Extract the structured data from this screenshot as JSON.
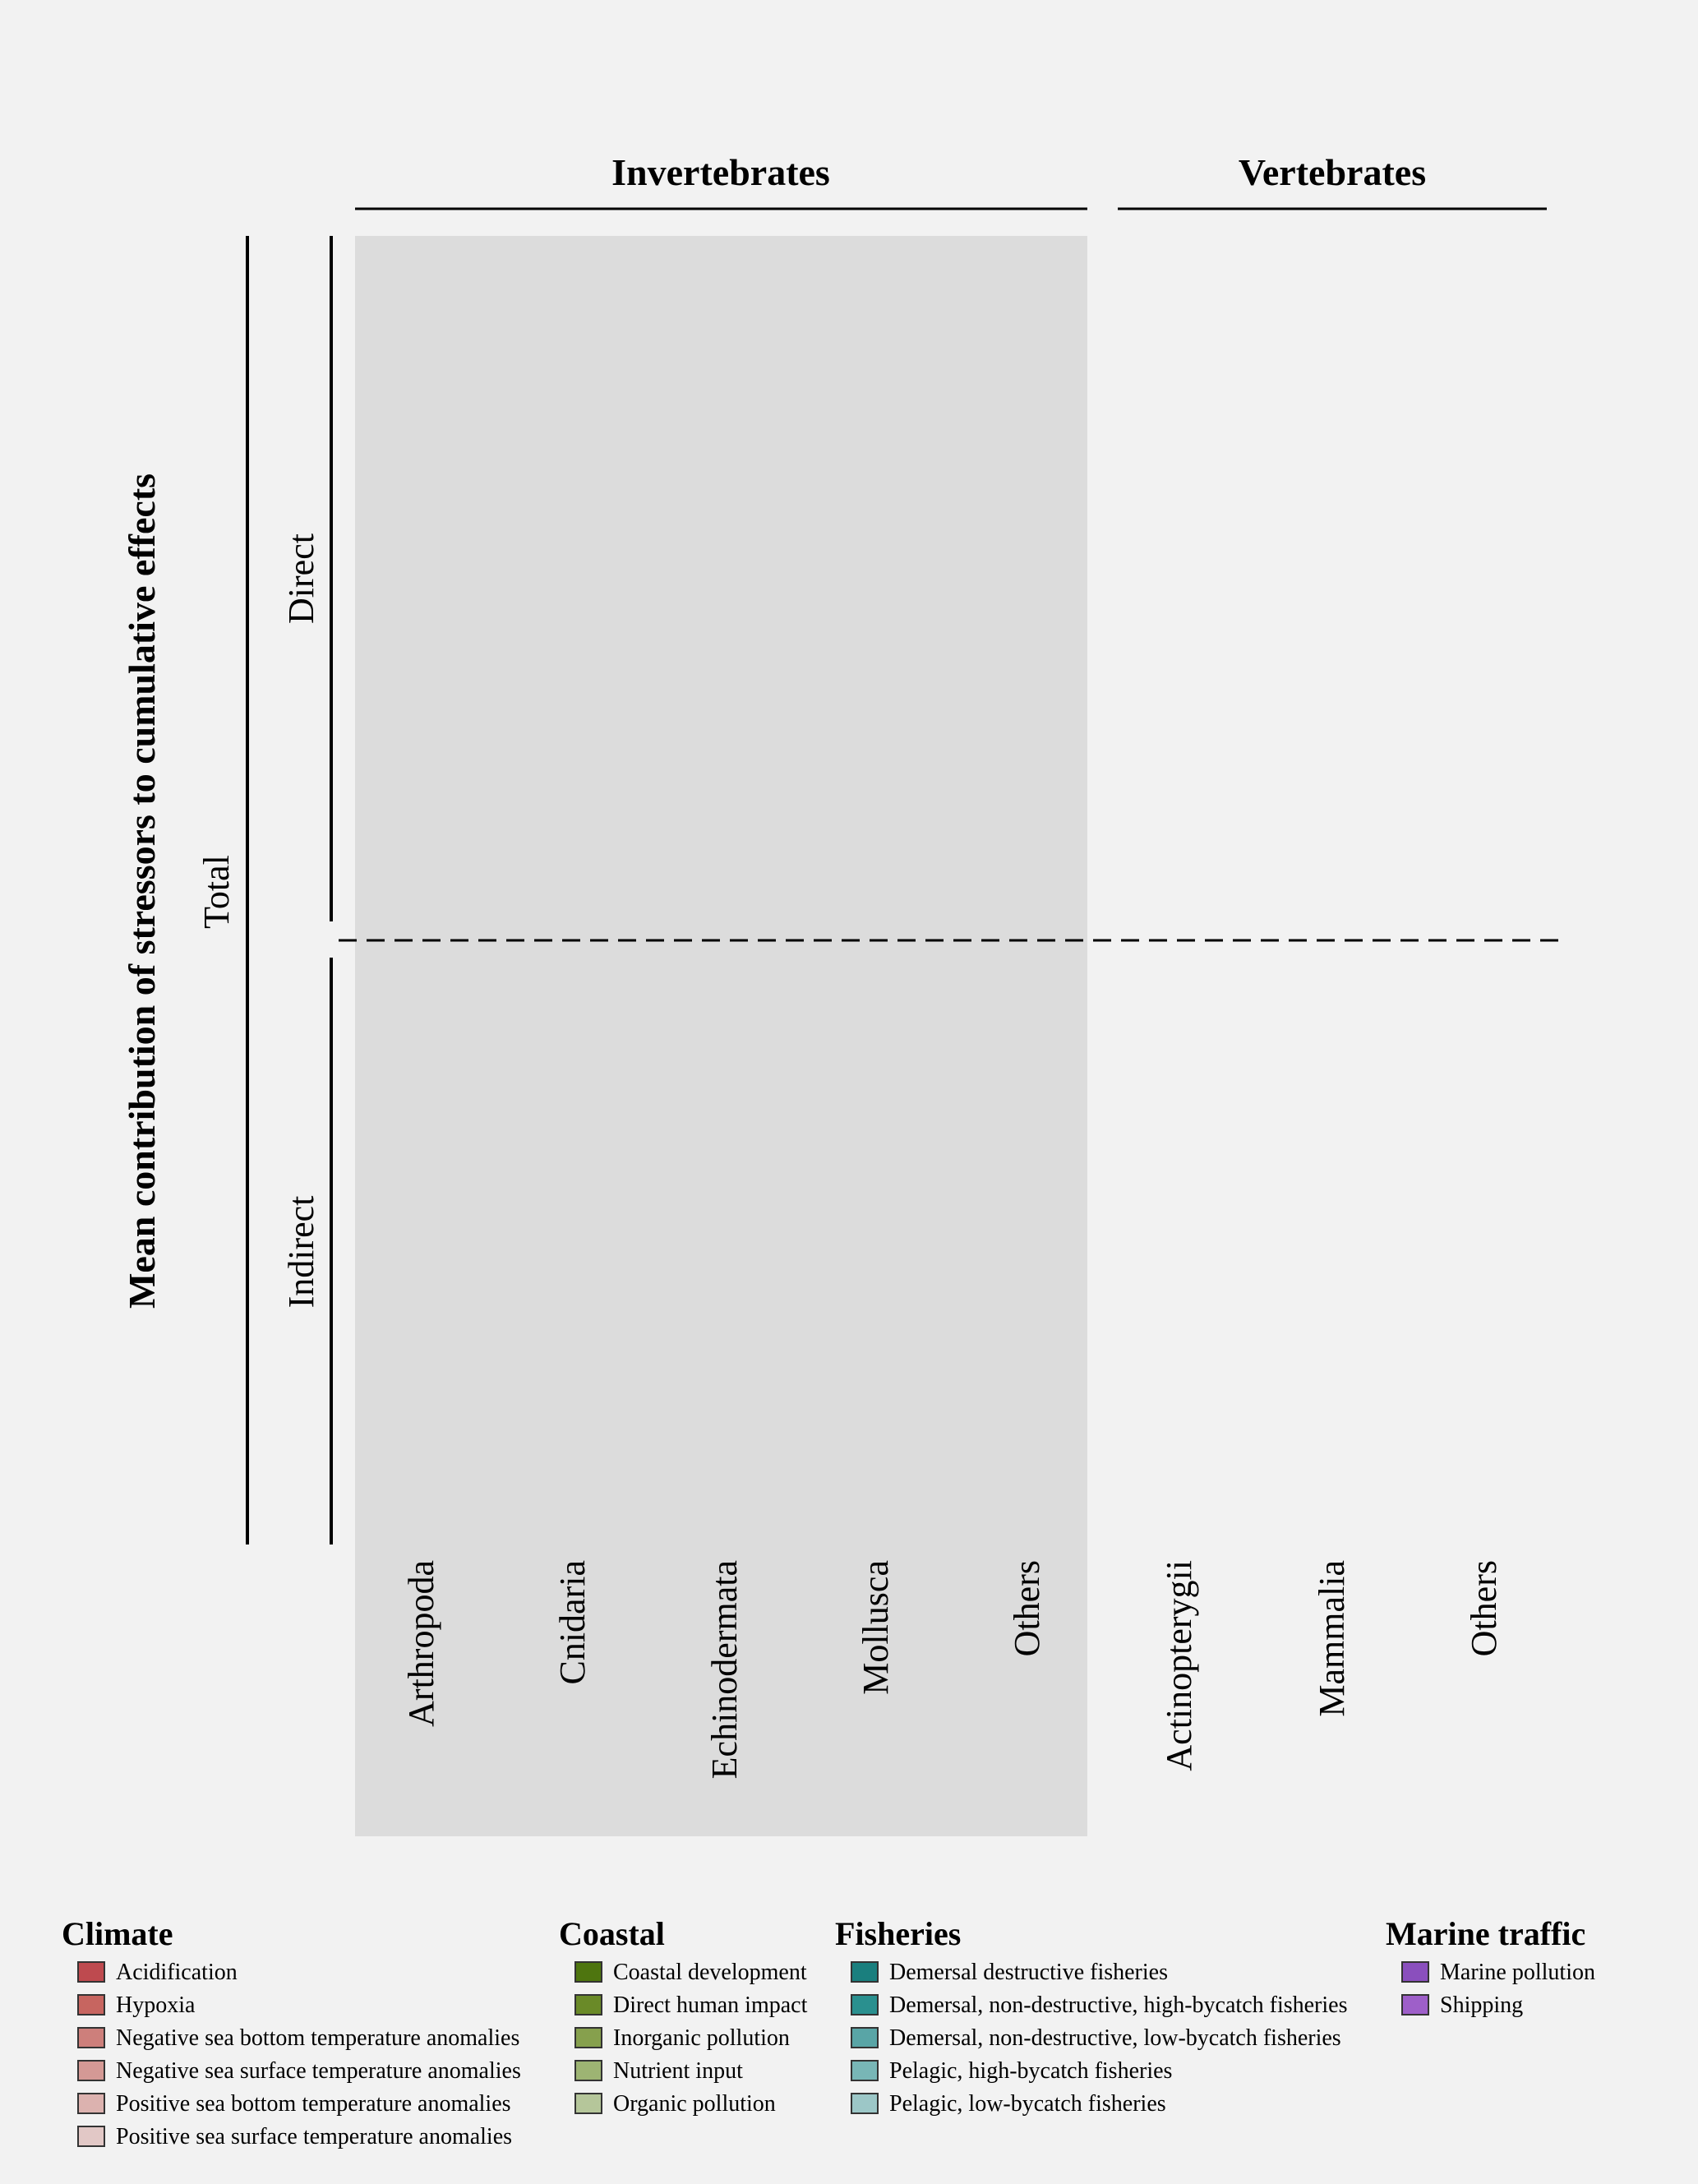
{
  "chart_data": {
    "type": "bar",
    "orientation": "vertical stacked",
    "y_label": "Mean contribution of stressors to cumulative effects",
    "y_bracket_labels": {
      "total": "Total",
      "direct": "Direct",
      "indirect": "Indirect"
    },
    "groups": [
      {
        "name": "Invertebrates",
        "categories": [
          "Arthropoda",
          "Cnidaria",
          "Echinodermata",
          "Mollusca",
          "Others"
        ],
        "shaded": true
      },
      {
        "name": "Vertebrates",
        "categories": [
          "Actinopterygii",
          "Mammalia",
          "Others"
        ],
        "shaded": false
      }
    ],
    "series": [],
    "legend": [
      {
        "title": "Climate",
        "items": [
          {
            "label": "Acidification",
            "color": "#be4a4f"
          },
          {
            "label": "Hypoxia",
            "color": "#c76560"
          },
          {
            "label": "Negative sea bottom temperature anomalies",
            "color": "#cd7f7b"
          },
          {
            "label": "Negative sea surface temperature anomalies",
            "color": "#d49995"
          },
          {
            "label": "Positive sea bottom temperature anomalies",
            "color": "#dcb2af"
          },
          {
            "label": "Positive sea surface temperature anomalies",
            "color": "#e2c8c6"
          }
        ]
      },
      {
        "title": "Coastal",
        "items": [
          {
            "label": "Coastal development",
            "color": "#4e750f"
          },
          {
            "label": "Direct human impact",
            "color": "#6a8a28"
          },
          {
            "label": "Inorganic pollution",
            "color": "#86a04d"
          },
          {
            "label": "Nutrient input",
            "color": "#9db473"
          },
          {
            "label": "Organic pollution",
            "color": "#b5c69a"
          }
        ]
      },
      {
        "title": "Fisheries",
        "items": [
          {
            "label": "Demersal destructive fisheries",
            "color": "#1a7f7e"
          },
          {
            "label": "Demersal, non-destructive, high-bycatch fisheries",
            "color": "#2a908f"
          },
          {
            "label": "Demersal, non-destructive, low-bycatch fisheries",
            "color": "#59a5a6"
          },
          {
            "label": "Pelagic, high-bycatch fisheries",
            "color": "#78b6b6"
          },
          {
            "label": "Pelagic, low-bycatch fisheries",
            "color": "#9cc7c7"
          }
        ]
      },
      {
        "title": "Marine traffic",
        "items": [
          {
            "label": "Marine pollution",
            "color": "#8a4fbd"
          },
          {
            "label": "Shipping",
            "color": "#9e5fc9"
          }
        ]
      }
    ]
  }
}
